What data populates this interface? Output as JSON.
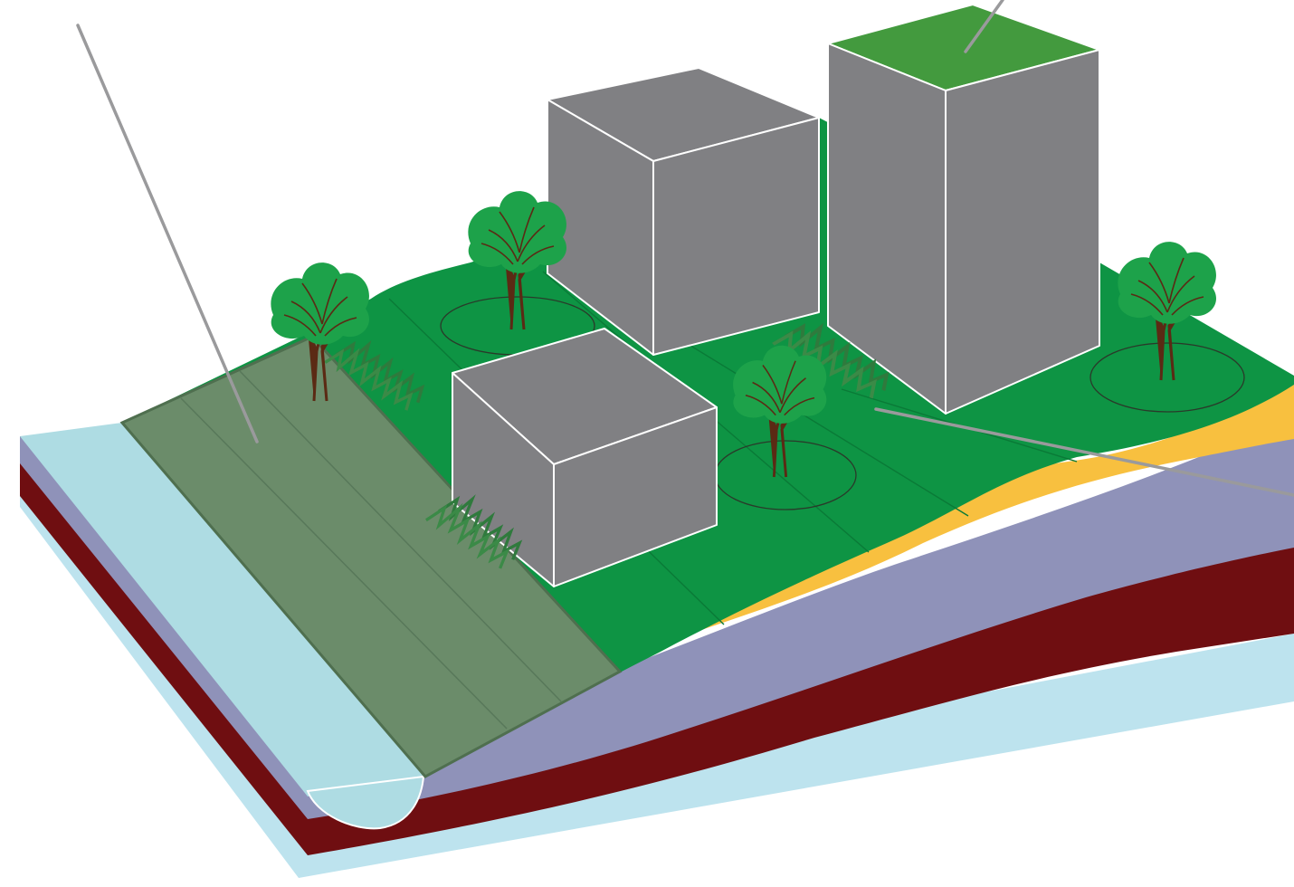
{
  "title": "",
  "colors": {
    "background": "#ffffff",
    "water_base": "#bde3ee",
    "water_channel": "#aedce3",
    "grass": "#0e9444",
    "green_roof": "#439a3e",
    "permeable_strip": "#6b8c6a",
    "building": "#808083",
    "building_edge": "#ffffff",
    "sand_layer": "#f8c03f",
    "clay_layer": "#8f92b9",
    "rock_layer": "#6f0e11",
    "leader_line": "#9a9a9c",
    "tree_canopy": "#1da24a",
    "tree_trunk": "#5b2a14",
    "planting": "#2f7a3d"
  },
  "elements": {
    "buildings": [
      "tall-building-with-green-roof",
      "middle-building",
      "front-building"
    ],
    "surfaces": [
      "permeable-pavement-strip",
      "water-channel",
      "grass-plateau"
    ],
    "soil_layers": [
      "sand-layer",
      "clay-layer",
      "rock-layer",
      "groundwater-layer"
    ],
    "vegetation": [
      "tree",
      "tree",
      "tree",
      "tree",
      "tree",
      "shrub-planting",
      "shrub-planting",
      "shrub-planting"
    ],
    "callout_leaders": 3
  }
}
